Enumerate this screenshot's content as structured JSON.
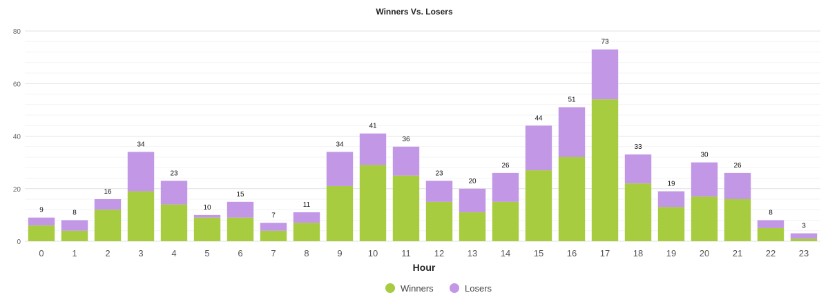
{
  "chart_data": {
    "type": "bar",
    "stacked": true,
    "title": "Winners Vs. Losers",
    "xlabel": "Hour",
    "ylabel": "",
    "ylim": [
      0,
      80
    ],
    "y_ticks": [
      0,
      20,
      40,
      60,
      80
    ],
    "grid": true,
    "legend_position": "bottom",
    "categories": [
      "0",
      "1",
      "2",
      "3",
      "4",
      "5",
      "6",
      "7",
      "8",
      "9",
      "10",
      "11",
      "12",
      "13",
      "14",
      "15",
      "16",
      "17",
      "18",
      "19",
      "20",
      "21",
      "22",
      "23"
    ],
    "series": [
      {
        "name": "Winners",
        "color": "#a8cc3f",
        "values": [
          6,
          4,
          12,
          19,
          14,
          9,
          9,
          4,
          7,
          21,
          29,
          25,
          15,
          11,
          15,
          27,
          32,
          54,
          22,
          13,
          17,
          16,
          5,
          1
        ]
      },
      {
        "name": "Losers",
        "color": "#c197e6",
        "values": [
          3,
          4,
          4,
          15,
          9,
          1,
          6,
          3,
          4,
          13,
          12,
          11,
          8,
          9,
          11,
          17,
          19,
          19,
          11,
          6,
          13,
          10,
          3,
          2
        ]
      }
    ],
    "totals": [
      9,
      8,
      16,
      34,
      23,
      10,
      15,
      7,
      11,
      34,
      41,
      36,
      23,
      20,
      26,
      44,
      51,
      73,
      33,
      19,
      30,
      26,
      8,
      3
    ]
  }
}
